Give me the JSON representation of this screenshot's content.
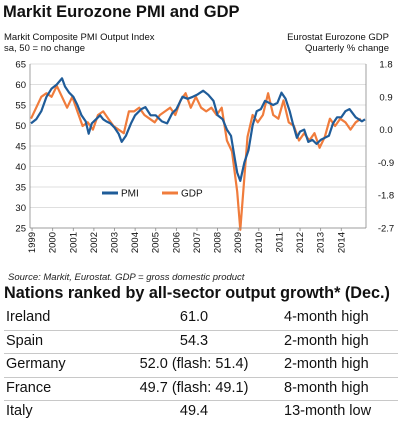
{
  "chart_data": {
    "type": "line",
    "title": "Markit Eurozone PMI and GDP",
    "left_axis_title": [
      "Markit Composite PMI Output Index",
      "sa, 50 = no change"
    ],
    "right_axis_title": [
      "Eurostat Eurozone GDP",
      "Quarterly % change"
    ],
    "source_note": "Source: Markit, Eurostat. GDP = gross domestic product",
    "x_tick_labels": [
      "1999",
      "2000",
      "2001",
      "2002",
      "2003",
      "2004",
      "2005",
      "2006",
      "2007",
      "2008",
      "2009",
      "2010",
      "2011",
      "2012",
      "2013",
      "2014"
    ],
    "y_left_ticks": [
      "65",
      "60",
      "55",
      "50",
      "45",
      "40",
      "35",
      "30",
      "25"
    ],
    "y_right_ticks": [
      "1.8",
      "0.9",
      "0.0",
      "-0.9",
      "-1.8",
      "-2.7"
    ],
    "ylim_left": [
      25,
      65
    ],
    "ylim_right": [
      -2.7,
      1.8
    ],
    "xlim": [
      1998.9,
      2015.2
    ],
    "legend_position": "bottom-center",
    "series": [
      {
        "name": "PMI",
        "axis": "left",
        "color": "#1f5c99",
        "points": [
          [
            1998.95,
            50.5
          ],
          [
            1999.2,
            51.5
          ],
          [
            1999.45,
            53.5
          ],
          [
            1999.7,
            57.0
          ],
          [
            1999.95,
            59.0
          ],
          [
            2000.2,
            60.0
          ],
          [
            2000.45,
            61.5
          ],
          [
            2000.6,
            59.5
          ],
          [
            2000.8,
            58.0
          ],
          [
            2001.0,
            57.0
          ],
          [
            2001.2,
            55.0
          ],
          [
            2001.4,
            52.5
          ],
          [
            2001.6,
            51.0
          ],
          [
            2001.75,
            48.0
          ],
          [
            2001.9,
            50.5
          ],
          [
            2002.1,
            51.5
          ],
          [
            2002.3,
            52.5
          ],
          [
            2002.45,
            51.5
          ],
          [
            2002.6,
            51.0
          ],
          [
            2002.8,
            50.5
          ],
          [
            2003.0,
            49.5
          ],
          [
            2003.2,
            48.0
          ],
          [
            2003.35,
            46.0
          ],
          [
            2003.55,
            47.5
          ],
          [
            2003.8,
            50.5
          ],
          [
            2004.0,
            52.5
          ],
          [
            2004.3,
            54.0
          ],
          [
            2004.5,
            54.5
          ],
          [
            2004.75,
            52.5
          ],
          [
            2005.0,
            52.5
          ],
          [
            2005.3,
            51.0
          ],
          [
            2005.55,
            50.5
          ],
          [
            2005.8,
            53.0
          ],
          [
            2006.0,
            54.0
          ],
          [
            2006.3,
            57.0
          ],
          [
            2006.55,
            56.5
          ],
          [
            2006.8,
            57.0
          ],
          [
            2007.0,
            57.5
          ],
          [
            2007.3,
            58.5
          ],
          [
            2007.55,
            57.5
          ],
          [
            2007.8,
            56.0
          ],
          [
            2008.0,
            52.5
          ],
          [
            2008.25,
            51.5
          ],
          [
            2008.45,
            49.0
          ],
          [
            2008.65,
            47.5
          ],
          [
            2008.85,
            41.5
          ],
          [
            2008.95,
            38.5
          ],
          [
            2009.1,
            36.5
          ],
          [
            2009.3,
            41.0
          ],
          [
            2009.5,
            44.0
          ],
          [
            2009.7,
            50.0
          ],
          [
            2009.9,
            53.5
          ],
          [
            2010.1,
            54.0
          ],
          [
            2010.3,
            56.0
          ],
          [
            2010.5,
            55.5
          ],
          [
            2010.7,
            55.0
          ],
          [
            2010.9,
            55.5
          ],
          [
            2011.1,
            58.0
          ],
          [
            2011.3,
            56.5
          ],
          [
            2011.5,
            53.5
          ],
          [
            2011.65,
            50.5
          ],
          [
            2011.85,
            47.0
          ],
          [
            2012.0,
            48.5
          ],
          [
            2012.2,
            49.0
          ],
          [
            2012.4,
            46.0
          ],
          [
            2012.6,
            46.5
          ],
          [
            2012.8,
            45.5
          ],
          [
            2013.0,
            46.5
          ],
          [
            2013.2,
            47.0
          ],
          [
            2013.4,
            47.5
          ],
          [
            2013.6,
            50.5
          ],
          [
            2013.8,
            52.0
          ],
          [
            2014.0,
            52.0
          ],
          [
            2014.2,
            53.5
          ],
          [
            2014.4,
            54.0
          ],
          [
            2014.55,
            53.0
          ],
          [
            2014.7,
            52.0
          ],
          [
            2014.85,
            51.5
          ],
          [
            2015.0,
            51.0
          ],
          [
            2015.15,
            51.5
          ]
        ]
      },
      {
        "name": "GDP",
        "axis": "right",
        "color": "#f07c3c",
        "points": [
          [
            1998.95,
            0.3
          ],
          [
            1999.2,
            0.6
          ],
          [
            1999.45,
            0.9
          ],
          [
            1999.7,
            1.0
          ],
          [
            1999.95,
            0.9
          ],
          [
            2000.2,
            1.2
          ],
          [
            2000.45,
            0.9
          ],
          [
            2000.7,
            0.6
          ],
          [
            2000.95,
            0.9
          ],
          [
            2001.2,
            0.5
          ],
          [
            2001.45,
            0.1
          ],
          [
            2001.7,
            0.2
          ],
          [
            2001.95,
            0.0
          ],
          [
            2002.2,
            0.4
          ],
          [
            2002.45,
            0.5
          ],
          [
            2002.7,
            0.3
          ],
          [
            2002.95,
            0.1
          ],
          [
            2003.2,
            0.0
          ],
          [
            2003.45,
            -0.1
          ],
          [
            2003.7,
            0.5
          ],
          [
            2003.95,
            0.5
          ],
          [
            2004.2,
            0.6
          ],
          [
            2004.45,
            0.4
          ],
          [
            2004.7,
            0.3
          ],
          [
            2004.95,
            0.2
          ],
          [
            2005.2,
            0.4
          ],
          [
            2005.45,
            0.5
          ],
          [
            2005.7,
            0.6
          ],
          [
            2005.95,
            0.4
          ],
          [
            2006.2,
            0.8
          ],
          [
            2006.45,
            1.0
          ],
          [
            2006.7,
            0.6
          ],
          [
            2006.95,
            0.9
          ],
          [
            2007.2,
            0.6
          ],
          [
            2007.45,
            0.5
          ],
          [
            2007.7,
            0.6
          ],
          [
            2007.95,
            0.4
          ],
          [
            2008.2,
            0.6
          ],
          [
            2008.45,
            -0.3
          ],
          [
            2008.7,
            -0.6
          ],
          [
            2008.95,
            -1.7
          ],
          [
            2009.1,
            -2.8
          ],
          [
            2009.45,
            -0.2
          ],
          [
            2009.7,
            0.4
          ],
          [
            2009.95,
            0.2
          ],
          [
            2010.2,
            0.4
          ],
          [
            2010.45,
            1.0
          ],
          [
            2010.7,
            0.4
          ],
          [
            2010.95,
            0.3
          ],
          [
            2011.2,
            0.8
          ],
          [
            2011.45,
            0.2
          ],
          [
            2011.7,
            0.1
          ],
          [
            2011.95,
            -0.3
          ],
          [
            2012.2,
            -0.1
          ],
          [
            2012.45,
            -0.3
          ],
          [
            2012.7,
            -0.1
          ],
          [
            2012.95,
            -0.5
          ],
          [
            2013.2,
            -0.2
          ],
          [
            2013.45,
            0.3
          ],
          [
            2013.7,
            0.1
          ],
          [
            2013.95,
            0.3
          ],
          [
            2014.2,
            0.2
          ],
          [
            2014.45,
            0.0
          ],
          [
            2014.7,
            0.2
          ],
          [
            2014.95,
            0.3
          ]
        ]
      }
    ]
  },
  "ranking": {
    "title": "Nations ranked by all-sector output growth* (Dec.)",
    "rows": [
      {
        "country": "Ireland",
        "value": "61.0",
        "note": "4-month high"
      },
      {
        "country": "Spain",
        "value": "54.3",
        "note": "2-month high"
      },
      {
        "country": "Germany",
        "value": "52.0 (flash: 51.4)",
        "note": "2-month high"
      },
      {
        "country": "France",
        "value": "49.7 (flash: 49.1)",
        "note": "8-month high"
      },
      {
        "country": "Italy",
        "value": "49.4",
        "note": "13-month low"
      }
    ]
  }
}
